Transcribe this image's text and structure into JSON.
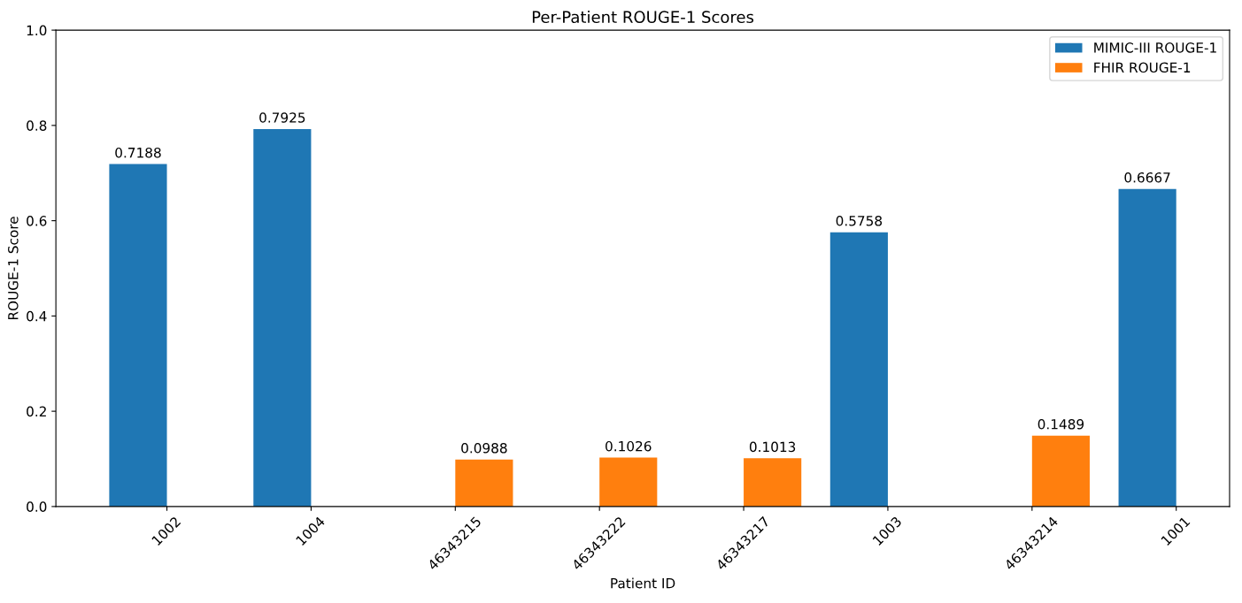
{
  "chart_data": {
    "type": "bar",
    "title": "Per-Patient ROUGE-1 Scores",
    "xlabel": "Patient ID",
    "ylabel": "ROUGE-1 Score",
    "categories": [
      "1002",
      "1004",
      "46343215",
      "46343222",
      "46343217",
      "1003",
      "46343214",
      "1001"
    ],
    "series": [
      {
        "name": "MIMIC-III ROUGE-1",
        "color": "#1f77b4",
        "values": [
          0.7188,
          0.7925,
          null,
          null,
          null,
          0.5758,
          null,
          0.6667
        ]
      },
      {
        "name": "FHIR ROUGE-1",
        "color": "#ff7f0e",
        "values": [
          null,
          null,
          0.0988,
          0.1026,
          0.1013,
          null,
          0.1489,
          null
        ]
      }
    ],
    "ylim": [
      0,
      1
    ],
    "yticks": [
      {
        "value": 0,
        "label": "0.0"
      },
      {
        "value": 0.2,
        "label": "0.2"
      },
      {
        "value": 0.4,
        "label": "0.4"
      },
      {
        "value": 0.6,
        "label": "0.6"
      },
      {
        "value": 0.8,
        "label": "0.8"
      },
      {
        "value": 1,
        "label": "1.0"
      }
    ],
    "data_labels": true,
    "legend": "top right",
    "grid": false
  }
}
